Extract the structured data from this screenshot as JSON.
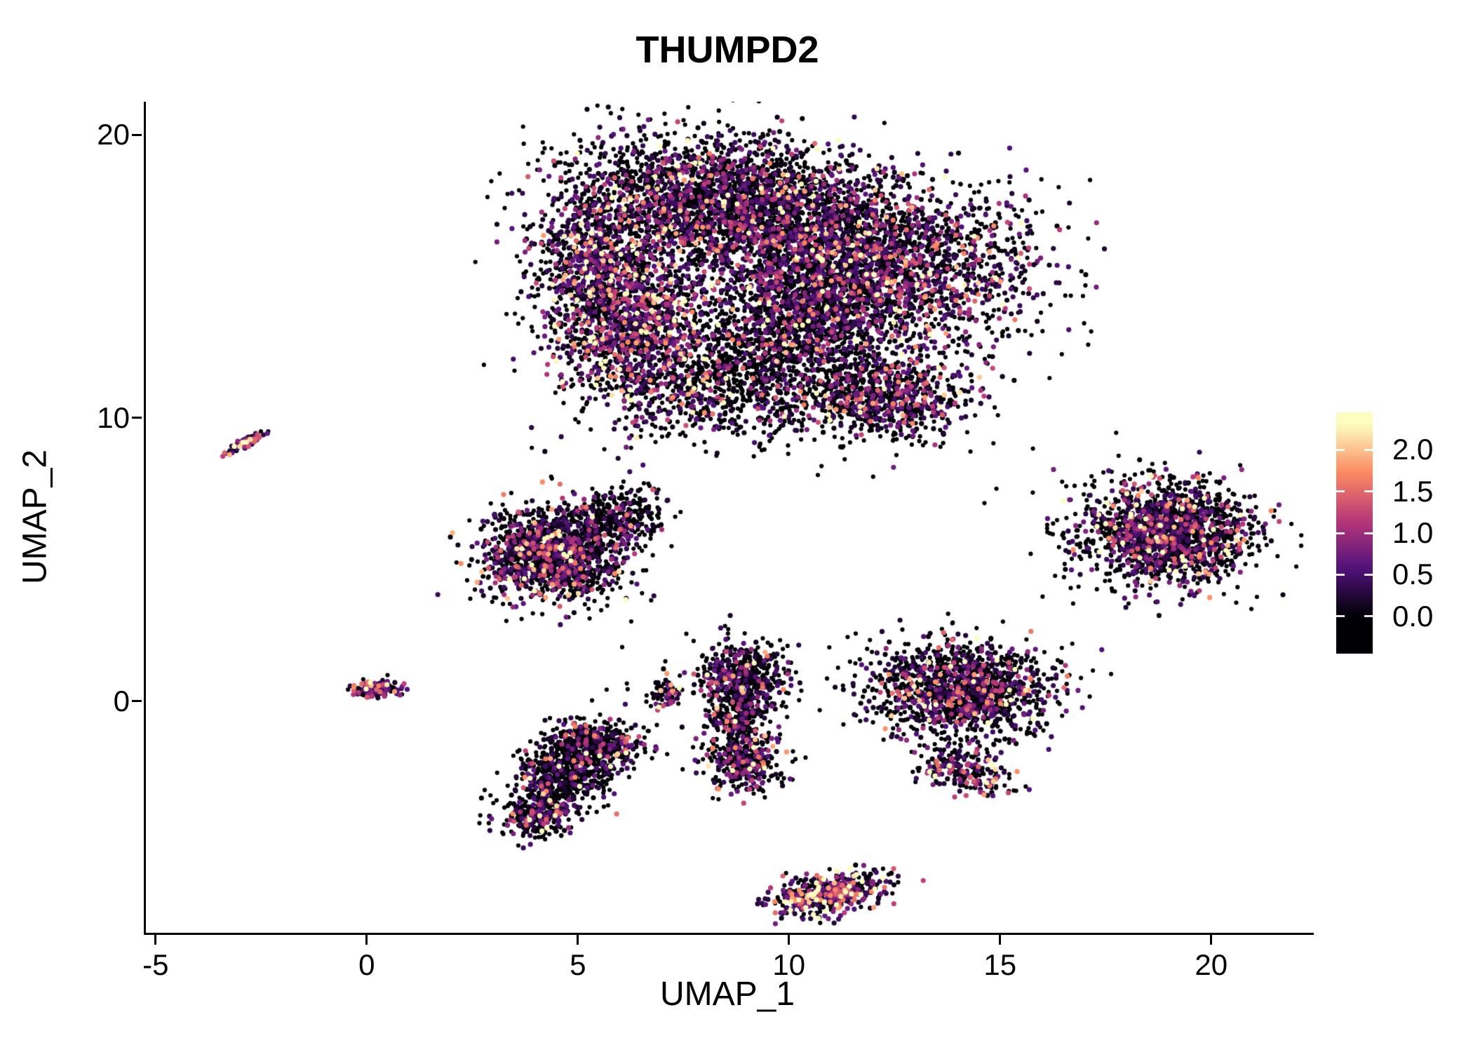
{
  "chart_data": {
    "type": "scatter",
    "title": "THUMPD2",
    "xlabel": "UMAP_1",
    "ylabel": "UMAP_2",
    "xlim": [
      -5.28,
      22.38
    ],
    "ylim": [
      -8.18,
      21.17
    ],
    "x_ticks": [
      -5,
      0,
      5,
      10,
      15,
      20
    ],
    "y_ticks": [
      0,
      10,
      20
    ],
    "grid": false,
    "legend_position": "right",
    "background": "#FFFFFF",
    "point_style": {
      "radius_zero_px": 3.1,
      "radius_expressed_px": 3.6
    },
    "color_scale": {
      "name": "magma",
      "stops": [
        [
          0,
          "#000004"
        ],
        [
          0.25,
          "#51127C"
        ],
        [
          0.5,
          "#B73779"
        ],
        [
          0.75,
          "#FC8961"
        ],
        [
          1,
          "#FCFDBF"
        ]
      ],
      "value_max": 2.3,
      "bar_value_range": [
        -0.45,
        2.45
      ],
      "tick_values": [
        2.0,
        1.5,
        1.0,
        0.5,
        0.0
      ],
      "tick_labels": [
        "2.0",
        "1.5",
        "1.0",
        "0.5",
        "0.0"
      ]
    },
    "seed": 1337,
    "clusters": [
      {
        "name": "main-top-a",
        "cx": 8.3,
        "cy": 17.6,
        "sx": 1.9,
        "sy": 1.15,
        "rot": -8,
        "n": 2600,
        "p_zero": 0.55,
        "expr_scale": 0.6
      },
      {
        "name": "main-top-b",
        "cx": 11.6,
        "cy": 15.3,
        "sx": 1.9,
        "sy": 1.5,
        "rot": 0,
        "n": 2900,
        "p_zero": 0.5,
        "expr_scale": 0.65
      },
      {
        "name": "main-left-lobe",
        "cx": 6.2,
        "cy": 13.3,
        "sx": 1.0,
        "sy": 1.5,
        "rot": 10,
        "n": 1400,
        "p_zero": 0.45,
        "expr_scale": 0.8
      },
      {
        "name": "main-bottom-sparse",
        "cx": 9.2,
        "cy": 11.3,
        "sx": 1.6,
        "sy": 1.0,
        "rot": 0,
        "n": 1100,
        "p_zero": 0.72,
        "expr_scale": 0.55
      },
      {
        "name": "main-bottom-right",
        "cx": 12.4,
        "cy": 10.7,
        "sx": 0.9,
        "sy": 0.75,
        "rot": 0,
        "n": 650,
        "p_zero": 0.5,
        "expr_scale": 0.65
      },
      {
        "name": "main-upper-left",
        "cx": 5.3,
        "cy": 15.6,
        "sx": 0.7,
        "sy": 0.9,
        "rot": 0,
        "n": 550,
        "p_zero": 0.5,
        "expr_scale": 0.7
      },
      {
        "name": "main-bridge",
        "cx": 10.3,
        "cy": 13.4,
        "sx": 1.2,
        "sy": 0.9,
        "rot": 0,
        "n": 700,
        "p_zero": 0.6,
        "expr_scale": 0.6
      },
      {
        "name": "left-streak",
        "cx": -2.9,
        "cy": 9.15,
        "sx": 0.3,
        "sy": 0.07,
        "rot": 38,
        "n": 80,
        "p_zero": 0.2,
        "expr_scale": 1.0
      },
      {
        "name": "mid-left-core",
        "cx": 4.4,
        "cy": 5.2,
        "sx": 0.85,
        "sy": 0.8,
        "rot": 0,
        "n": 1500,
        "p_zero": 0.55,
        "expr_scale": 0.65
      },
      {
        "name": "mid-left-tail",
        "cx": 5.8,
        "cy": 6.6,
        "sx": 0.6,
        "sy": 0.5,
        "rot": 20,
        "n": 300,
        "p_zero": 0.75,
        "expr_scale": 0.5
      },
      {
        "name": "right-core",
        "cx": 18.9,
        "cy": 5.9,
        "sx": 0.95,
        "sy": 0.85,
        "rot": 0,
        "n": 1500,
        "p_zero": 0.55,
        "expr_scale": 0.7
      },
      {
        "name": "right-halo",
        "cx": 18.9,
        "cy": 5.9,
        "sx": 1.35,
        "sy": 1.15,
        "rot": 0,
        "n": 250,
        "p_zero": 0.8,
        "expr_scale": 0.6
      },
      {
        "name": "origin-small",
        "cx": 0.15,
        "cy": 0.45,
        "sx": 0.26,
        "sy": 0.15,
        "rot": 5,
        "n": 160,
        "p_zero": 0.35,
        "expr_scale": 0.8
      },
      {
        "name": "lower-left-a",
        "cx": 5.3,
        "cy": -1.6,
        "sx": 0.6,
        "sy": 0.45,
        "rot": 0,
        "n": 500,
        "p_zero": 0.7,
        "expr_scale": 0.55
      },
      {
        "name": "lower-left-b",
        "cx": 4.6,
        "cy": -2.7,
        "sx": 0.55,
        "sy": 0.55,
        "rot": 0,
        "n": 450,
        "p_zero": 0.7,
        "expr_scale": 0.55
      },
      {
        "name": "lower-left-c",
        "cx": 3.95,
        "cy": -4.05,
        "sx": 0.45,
        "sy": 0.4,
        "rot": 15,
        "n": 300,
        "p_zero": 0.55,
        "expr_scale": 0.7
      },
      {
        "name": "tiny-mid",
        "cx": 7.05,
        "cy": 0.3,
        "sx": 0.18,
        "sy": 0.32,
        "rot": 0,
        "n": 70,
        "p_zero": 0.5,
        "expr_scale": 0.8
      },
      {
        "name": "vertical-a",
        "cx": 8.9,
        "cy": 1.0,
        "sx": 0.5,
        "sy": 0.55,
        "rot": 0,
        "n": 450,
        "p_zero": 0.6,
        "expr_scale": 0.6
      },
      {
        "name": "vertical-b",
        "cx": 8.8,
        "cy": -0.6,
        "sx": 0.35,
        "sy": 0.6,
        "rot": 0,
        "n": 300,
        "p_zero": 0.65,
        "expr_scale": 0.6
      },
      {
        "name": "vertical-c",
        "cx": 8.9,
        "cy": -2.2,
        "sx": 0.45,
        "sy": 0.6,
        "rot": 0,
        "n": 350,
        "p_zero": 0.6,
        "expr_scale": 0.6
      },
      {
        "name": "right-mid-core",
        "cx": 14.0,
        "cy": 0.4,
        "sx": 1.05,
        "sy": 0.85,
        "rot": 0,
        "n": 1400,
        "p_zero": 0.6,
        "expr_scale": 0.6
      },
      {
        "name": "right-mid-tail",
        "cx": 14.1,
        "cy": -2.4,
        "sx": 0.65,
        "sy": 0.38,
        "rot": -35,
        "n": 220,
        "p_zero": 0.45,
        "expr_scale": 0.8
      },
      {
        "name": "bottom-strip",
        "cx": 10.9,
        "cy": -6.8,
        "sx": 0.65,
        "sy": 0.33,
        "rot": 18,
        "n": 480,
        "p_zero": 0.3,
        "expr_scale": 0.85
      },
      {
        "name": "sparse-noise",
        "cx": 9.0,
        "cy": 0.2,
        "sx": 2.2,
        "sy": 1.1,
        "rot": 0,
        "n": 30,
        "p_zero": 0.85,
        "expr_scale": 0.5
      }
    ]
  }
}
